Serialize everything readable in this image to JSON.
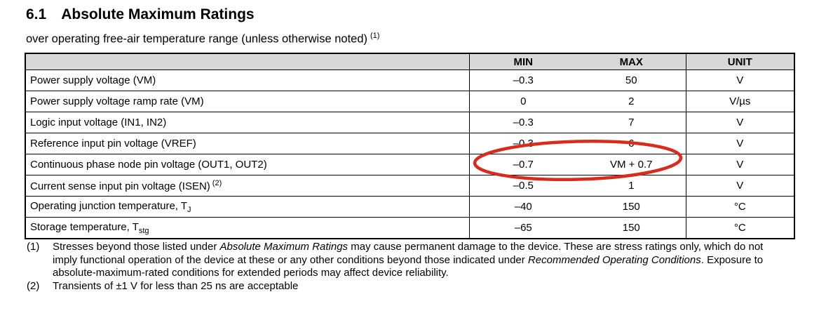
{
  "page": {
    "section_number": "6.1",
    "title": "Absolute Maximum Ratings",
    "subtitle": "over operating free-air temperature range (unless otherwise noted)",
    "subtitle_footnote_ref": "(1)"
  },
  "table": {
    "headers": {
      "parameter": "",
      "min": "MIN",
      "max": "MAX",
      "unit": "UNIT"
    },
    "rows": [
      {
        "label": "Power supply voltage (VM)",
        "min": "–0.3",
        "max": "50",
        "unit": "V"
      },
      {
        "label": "Power supply voltage ramp rate (VM)",
        "min": "0",
        "max": "2",
        "unit": "V/µs"
      },
      {
        "label": "Logic input voltage (IN1, IN2)",
        "min": "–0.3",
        "max": "7",
        "unit": "V"
      },
      {
        "label": "Reference input pin voltage (VREF)",
        "min": "–0.3",
        "max": "6",
        "unit": "V"
      },
      {
        "label": "Continuous phase node pin voltage (OUT1, OUT2)",
        "min": "–0.7",
        "max": "VM + 0.7",
        "unit": "V",
        "circled": true
      },
      {
        "label": "Current sense input pin voltage (ISEN)",
        "label_sup": "(2)",
        "min": "–0.5",
        "max": "1",
        "unit": "V"
      },
      {
        "label": "Operating junction temperature, T",
        "label_sub": "J",
        "min": "–40",
        "max": "150",
        "unit": "°C"
      },
      {
        "label": "Storage temperature, T",
        "label_sub": "stg",
        "min": "–65",
        "max": "150",
        "unit": "°C"
      }
    ]
  },
  "annotation": {
    "type": "ellipse",
    "color": "#d92b1c",
    "circles": "min and max values of Continuous phase node pin voltage (OUT1, OUT2) row"
  },
  "footnotes": [
    {
      "ref": "(1)",
      "segments": [
        {
          "text": "Stresses beyond those listed under "
        },
        {
          "text": "Absolute Maximum Ratings",
          "italic": true
        },
        {
          "text": " may cause permanent damage to the device. These are stress ratings only, which do not imply functional operation of the device at these or any other conditions beyond those indicated under "
        },
        {
          "text": "Recommended Operating Conditions",
          "italic": true
        },
        {
          "text": ". Exposure to absolute-maximum-rated conditions for extended periods may affect device reliability."
        }
      ]
    },
    {
      "ref": "(2)",
      "segments": [
        {
          "text": "Transients of ±1 V for less than 25 ns are acceptable"
        }
      ]
    }
  ]
}
